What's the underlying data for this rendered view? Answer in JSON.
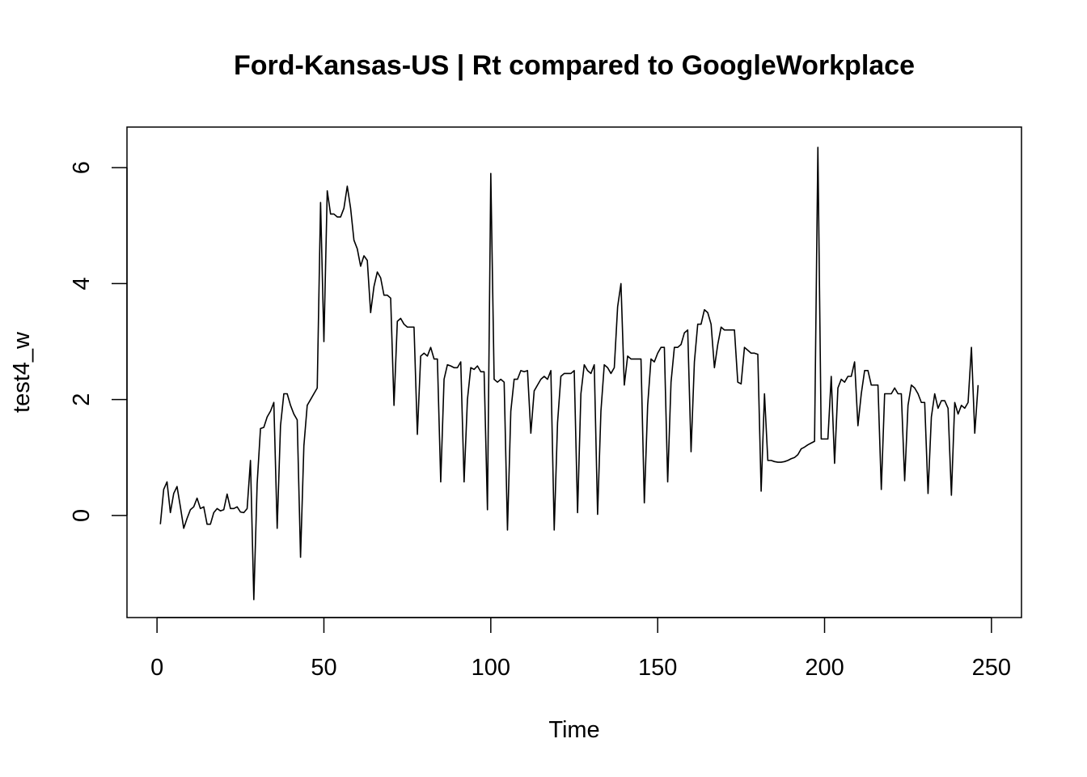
{
  "chart_data": {
    "type": "line",
    "title": "Ford-Kansas-US | Rt compared to GoogleWorkplace",
    "xlabel": "Time",
    "ylabel": "test4_w",
    "xlim": [
      -9,
      259
    ],
    "ylim": [
      -1.76,
      6.7
    ],
    "x_ticks": [
      0,
      50,
      100,
      150,
      200,
      250
    ],
    "y_ticks": [
      0,
      2,
      4,
      6
    ],
    "grid": false,
    "legend": "none",
    "line_color": "#000000",
    "series": [
      {
        "x_start": 1,
        "values": [
          -0.15,
          0.45,
          0.58,
          0.05,
          0.38,
          0.5,
          0.15,
          -0.22,
          -0.05,
          0.1,
          0.15,
          0.3,
          0.12,
          0.15,
          -0.15,
          -0.15,
          0.05,
          0.12,
          0.08,
          0.1,
          0.37,
          0.12,
          0.12,
          0.15,
          0.06,
          0.05,
          0.12,
          0.95,
          -1.45,
          0.55,
          1.5,
          1.52,
          1.7,
          1.8,
          1.95,
          -0.22,
          1.55,
          2.1,
          2.1,
          1.9,
          1.75,
          1.65,
          -0.72,
          1.2,
          1.9,
          2.0,
          2.1,
          2.2,
          5.4,
          3.0,
          5.6,
          5.2,
          5.2,
          5.15,
          5.15,
          5.3,
          5.68,
          5.3,
          4.75,
          4.6,
          4.3,
          4.48,
          4.4,
          3.5,
          3.95,
          4.2,
          4.1,
          3.8,
          3.8,
          3.75,
          1.9,
          3.35,
          3.4,
          3.3,
          3.25,
          3.25,
          3.25,
          1.4,
          2.75,
          2.8,
          2.75,
          2.9,
          2.7,
          2.7,
          0.58,
          2.35,
          2.6,
          2.58,
          2.55,
          2.55,
          2.65,
          0.58,
          2.0,
          2.55,
          2.52,
          2.58,
          2.48,
          2.48,
          0.1,
          5.9,
          2.35,
          2.3,
          2.35,
          2.3,
          -0.25,
          1.8,
          2.35,
          2.35,
          2.5,
          2.48,
          2.5,
          1.42,
          2.15,
          2.25,
          2.35,
          2.4,
          2.35,
          2.5,
          -0.25,
          1.6,
          2.4,
          2.45,
          2.45,
          2.45,
          2.5,
          0.05,
          2.1,
          2.6,
          2.5,
          2.45,
          2.6,
          0.02,
          1.8,
          2.6,
          2.55,
          2.45,
          2.55,
          3.6,
          4.0,
          2.25,
          2.75,
          2.7,
          2.7,
          2.7,
          2.7,
          0.22,
          1.9,
          2.7,
          2.65,
          2.8,
          2.9,
          2.9,
          0.58,
          2.3,
          2.9,
          2.9,
          2.95,
          3.15,
          3.2,
          1.1,
          2.65,
          3.3,
          3.3,
          3.55,
          3.5,
          3.3,
          2.55,
          2.95,
          3.25,
          3.2,
          3.2,
          3.2,
          3.2,
          2.3,
          2.27,
          2.9,
          2.85,
          2.8,
          2.8,
          2.78,
          0.42,
          2.1,
          0.95,
          0.95,
          0.93,
          0.92,
          0.92,
          0.93,
          0.95,
          0.98,
          1.0,
          1.05,
          1.15,
          1.18,
          1.22,
          1.25,
          1.28,
          6.35,
          1.32,
          1.32,
          1.32,
          2.4,
          0.9,
          2.2,
          2.35,
          2.3,
          2.4,
          2.4,
          2.65,
          1.55,
          2.1,
          2.5,
          2.5,
          2.25,
          2.25,
          2.25,
          0.45,
          2.1,
          2.1,
          2.1,
          2.2,
          2.1,
          2.1,
          0.6,
          1.9,
          2.25,
          2.2,
          2.1,
          1.95,
          1.95,
          0.38,
          1.7,
          2.1,
          1.85,
          1.98,
          1.98,
          1.85,
          0.35,
          1.95,
          1.75,
          1.9,
          1.85,
          1.95,
          2.9,
          1.42,
          2.25
        ]
      }
    ]
  }
}
